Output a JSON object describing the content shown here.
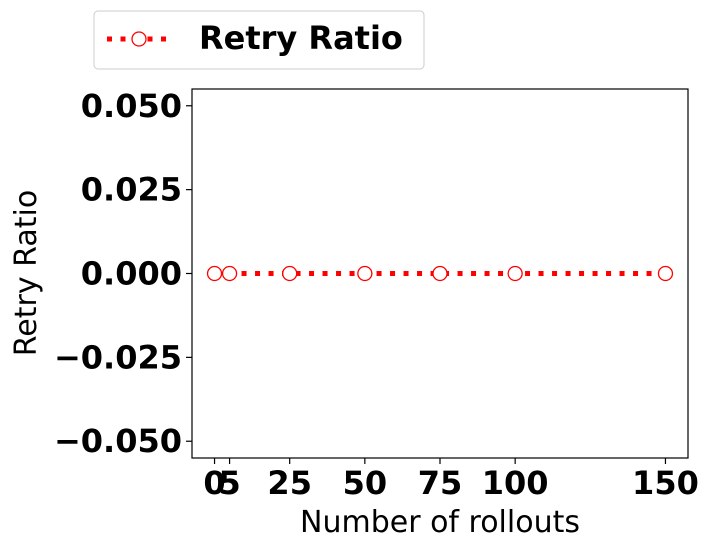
{
  "chart_data": {
    "type": "line",
    "title": "",
    "xlabel": "Number of rollouts",
    "ylabel": "Retry Ratio",
    "x": [
      0,
      5,
      25,
      50,
      75,
      100,
      150
    ],
    "series": [
      {
        "name": "Retry Ratio",
        "values": [
          0,
          0,
          0,
          0,
          0,
          0,
          0
        ],
        "color": "#ff0000",
        "line_style": "dotted",
        "marker": "open-circle"
      }
    ],
    "xticks": [
      0,
      5,
      25,
      50,
      75,
      100,
      150
    ],
    "xtick_labels": [
      "0",
      "5",
      "25",
      "50",
      "75",
      "100",
      "150"
    ],
    "yticks": [
      -0.05,
      -0.025,
      0,
      0.025,
      0.05
    ],
    "ytick_labels": [
      "−0.050",
      "−0.025",
      "0.000",
      "0.025",
      "0.050"
    ],
    "xlim": [
      -7.5,
      157.5
    ],
    "ylim": [
      -0.055,
      0.055
    ],
    "grid": false,
    "legend_position": "top-left, above plot"
  }
}
